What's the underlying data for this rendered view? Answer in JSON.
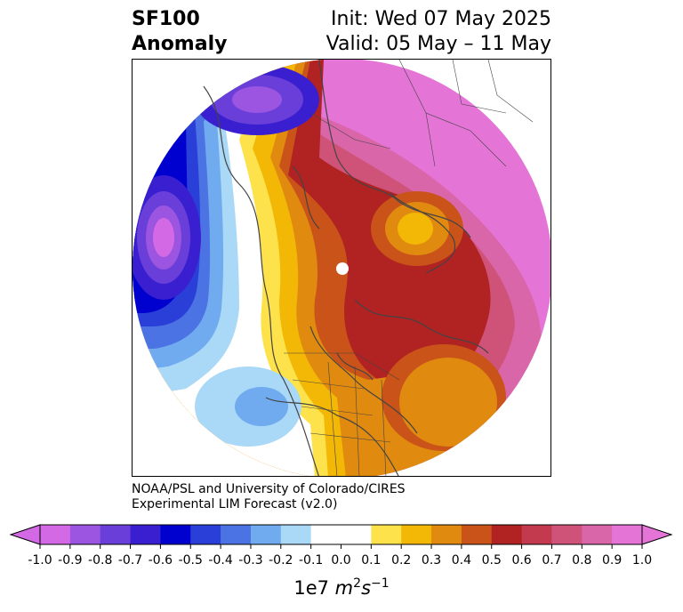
{
  "header": {
    "title_line1": "SF100",
    "title_line2": "Anomaly",
    "init": "Init: Wed 07 May 2025",
    "valid": "Valid: 05 May – 11 May"
  },
  "credit": {
    "line1": "NOAA/PSL and University of Colorado/CIRES",
    "line2": "Experimental LIM Forecast (v2.0)"
  },
  "colorbar": {
    "unit_prefix": "1e7 ",
    "unit_m": "m",
    "unit_m_exp": "2",
    "unit_s": "s",
    "unit_s_exp": "−1",
    "ticks": [
      "-1.0",
      "-0.9",
      "-0.8",
      "-0.7",
      "-0.6",
      "-0.5",
      "-0.4",
      "-0.3",
      "-0.2",
      "-0.1",
      "0.0",
      "0.1",
      "0.2",
      "0.3",
      "0.4",
      "0.5",
      "0.6",
      "0.7",
      "0.8",
      "0.9",
      "1.0"
    ],
    "colors": [
      "#d469e6",
      "#9c55e0",
      "#6a3fd9",
      "#3a1fd0",
      "#0000cf",
      "#2a3fd8",
      "#4b73e3",
      "#71abef",
      "#aad8f7",
      "#ffffff",
      "#ffffff",
      "#fde24b",
      "#f3b705",
      "#e08a0f",
      "#c95318",
      "#b12222",
      "#c33a4f",
      "#cf5379",
      "#d966a9",
      "#e574d7"
    ],
    "under_color": "#d469e6",
    "over_color": "#e574d7"
  }
}
